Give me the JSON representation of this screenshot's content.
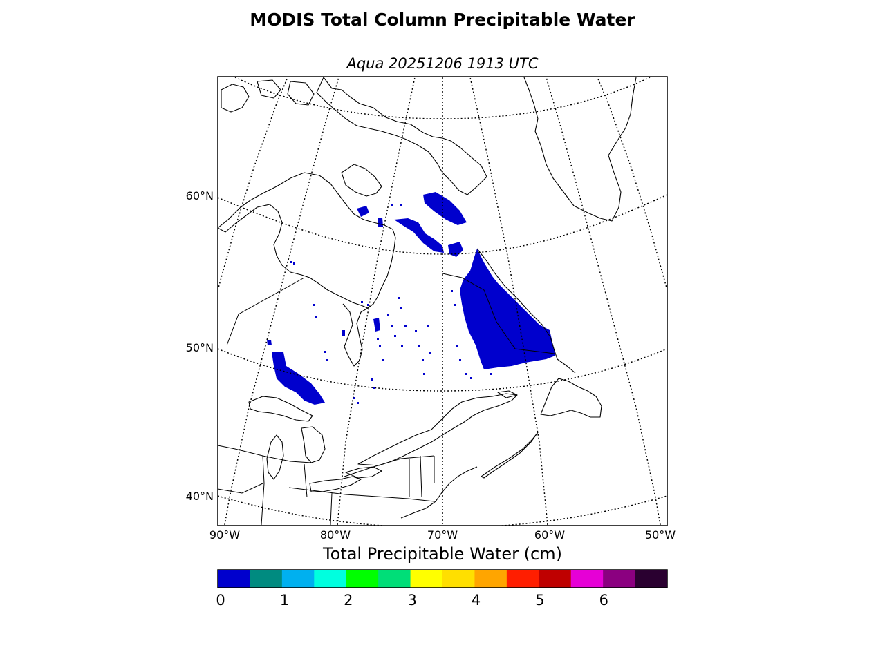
{
  "title": "MODIS Total Column Precipitable Water",
  "subtitle": "Aqua 20251206 1913 UTC",
  "map": {
    "lat_labels": [
      "60°N",
      "50°N",
      "40°N"
    ],
    "lon_labels": [
      "90°W",
      "80°W",
      "70°W",
      "60°W",
      "50°W"
    ]
  },
  "colorbar": {
    "label": "Total Precipitable Water (cm)",
    "tick_labels": [
      "0",
      "1",
      "2",
      "3",
      "4",
      "5",
      "6"
    ],
    "tick_values": [
      0,
      1,
      2,
      3,
      4,
      5,
      6
    ],
    "range": [
      0,
      7
    ],
    "colors": [
      "#0000cd",
      "#008b80",
      "#00b0ef",
      "#00ffdf",
      "#00ff00",
      "#00de78",
      "#ffff00",
      "#ffdf00",
      "#ffa500",
      "#ff1e00",
      "#bf0000",
      "#e600d6",
      "#8b0080",
      "#2a0030"
    ],
    "data_color": "#0000cd"
  }
}
